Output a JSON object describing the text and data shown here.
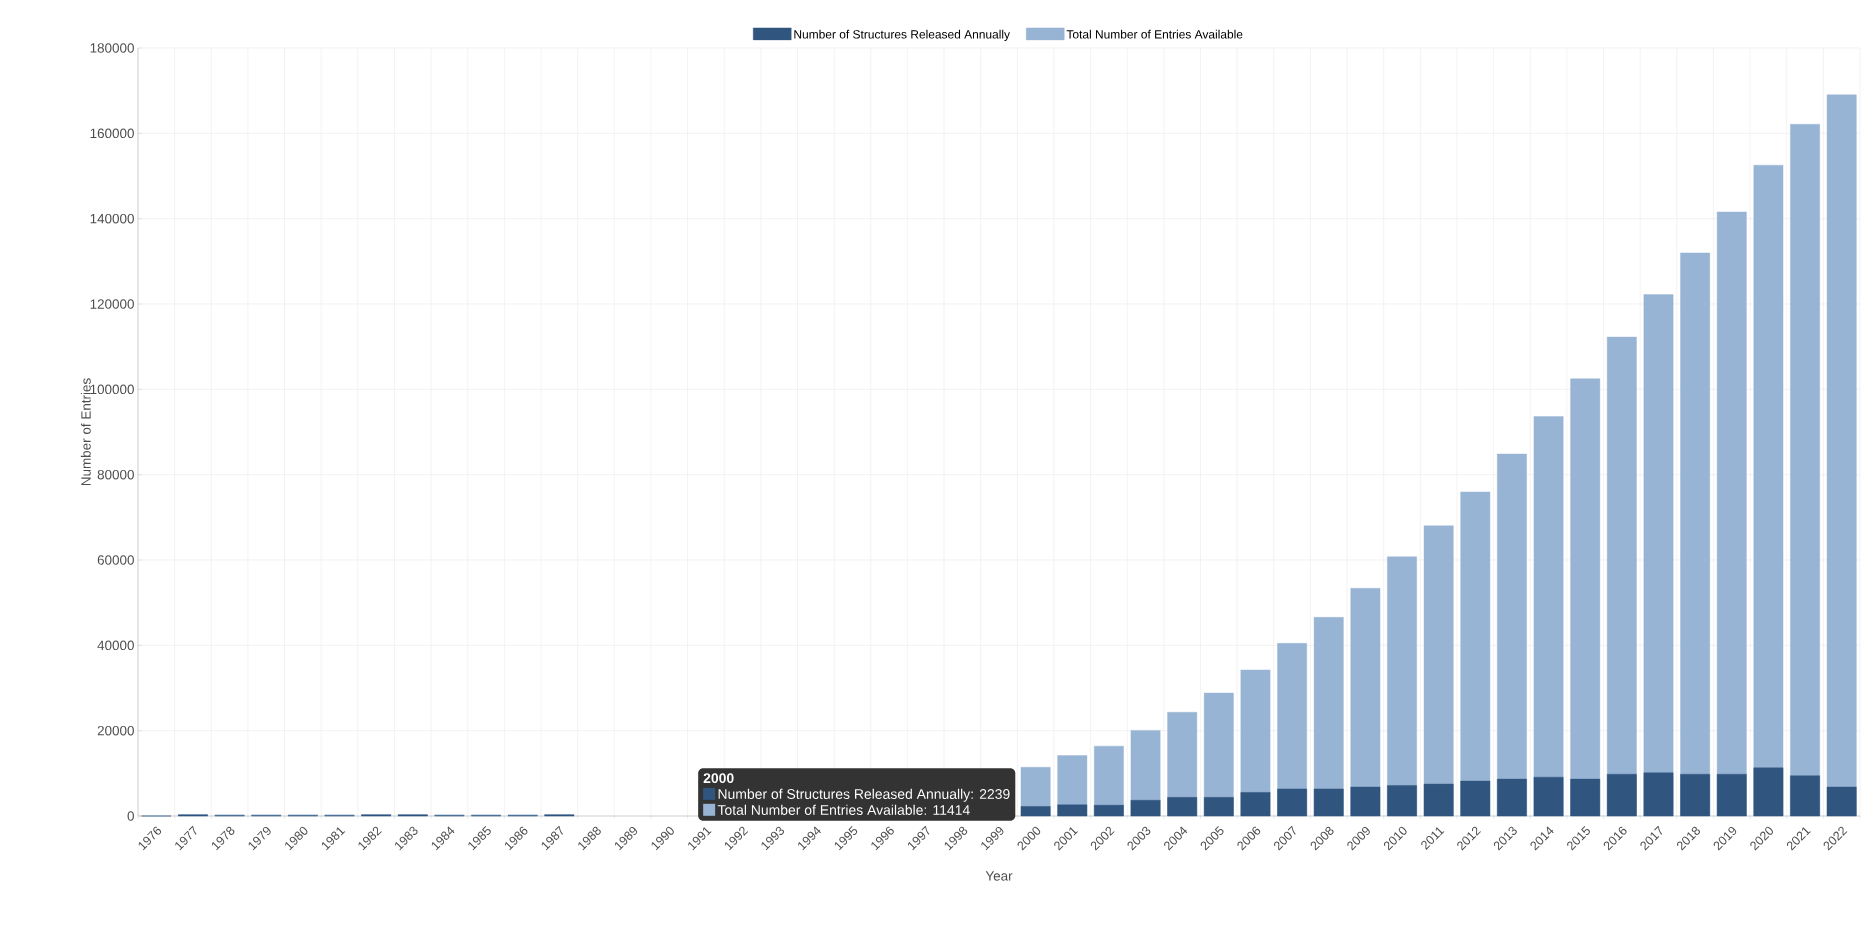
{
  "chart_data": {
    "type": "bar",
    "xlabel": "Year",
    "ylabel": "Number of Entries",
    "categories": [
      "1976",
      "1977",
      "1978",
      "1979",
      "1980",
      "1981",
      "1982",
      "1983",
      "1984",
      "1985",
      "1986",
      "1987",
      "1988",
      "1989",
      "1990",
      "1991",
      "1992",
      "1993",
      "1994",
      "1995",
      "1996",
      "1997",
      "1998",
      "1999",
      "2000",
      "2001",
      "2002",
      "2003",
      "2004",
      "2005",
      "2006",
      "2007",
      "2008",
      "2009",
      "2010",
      "2011",
      "2012",
      "2013",
      "2014",
      "2015",
      "2016",
      "2017",
      "2018",
      "2019",
      "2020",
      "2021",
      "2022"
    ],
    "series": [
      {
        "name": "Number of Structures Released Annually",
        "color": "#30557f",
        "values": [
          0,
          300,
          100,
          100,
          100,
          100,
          300,
          300,
          100,
          100,
          100,
          300,
          null,
          null,
          null,
          null,
          null,
          null,
          null,
          null,
          null,
          null,
          null,
          null,
          2239,
          2630,
          2540,
          3690,
          4380,
          4380,
          5530,
          6340,
          6340,
          6800,
          7150,
          7490,
          8180,
          8650,
          9110,
          8650,
          9800,
          10140,
          9800,
          9800,
          11300,
          9450,
          6800
        ]
      },
      {
        "name": "Total Number of Entries Available",
        "color": "#98b4d4",
        "values": [
          0,
          300,
          300,
          300,
          300,
          300,
          300,
          300,
          300,
          300,
          300,
          300,
          null,
          null,
          null,
          null,
          null,
          null,
          null,
          null,
          null,
          null,
          null,
          null,
          11414,
          14180,
          16370,
          20060,
          24320,
          28820,
          34240,
          40460,
          46570,
          53370,
          60750,
          68010,
          75960,
          84840,
          93640,
          102490,
          112260,
          122210,
          131980,
          141570,
          152540,
          162120,
          169030
        ]
      }
    ],
    "ylim": [
      0,
      180000
    ],
    "yticks": [
      0,
      20000,
      40000,
      60000,
      80000,
      100000,
      120000,
      140000,
      160000,
      180000
    ],
    "grid": true,
    "legend": "top",
    "annotations": [
      "2000",
      "Number of Structures Released Annually: 2239",
      "Total Number of Entries Available: 11414"
    ]
  }
}
